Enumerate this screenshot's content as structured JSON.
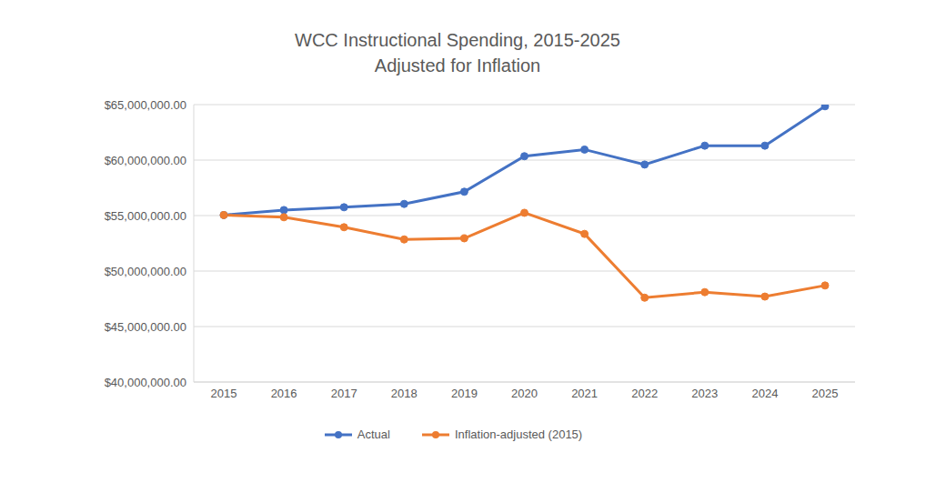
{
  "chart_data": {
    "type": "line",
    "title": "WCC Instructional Spending, 2015-2025",
    "subtitle": "Adjusted for Inflation",
    "categories": [
      "2015",
      "2016",
      "2017",
      "2018",
      "2019",
      "2020",
      "2021",
      "2022",
      "2023",
      "2024",
      "2025"
    ],
    "series": [
      {
        "name": "Actual",
        "color": "#4472c4",
        "marker": "circle",
        "values": [
          55050000,
          55500000,
          55750000,
          56050000,
          57150000,
          60350000,
          60950000,
          59600000,
          61300000,
          61300000,
          64850000
        ]
      },
      {
        "name": "Inflation-adjusted (2015)",
        "color": "#ed7d31",
        "marker": "circle",
        "values": [
          55050000,
          54850000,
          53950000,
          52850000,
          52950000,
          55250000,
          53350000,
          47600000,
          48100000,
          47700000,
          48700000
        ]
      }
    ],
    "ylim": [
      40000000,
      65000000
    ],
    "yticks": [
      {
        "value": 40000000,
        "label": "$40,000,000.00"
      },
      {
        "value": 45000000,
        "label": "$45,000,000.00"
      },
      {
        "value": 50000000,
        "label": "$50,000,000.00"
      },
      {
        "value": 55000000,
        "label": "$55,000,000.00"
      },
      {
        "value": 60000000,
        "label": "$60,000,000.00"
      },
      {
        "value": 65000000,
        "label": "$65,000,000.00"
      }
    ],
    "grid": true,
    "legend": "bottom"
  }
}
